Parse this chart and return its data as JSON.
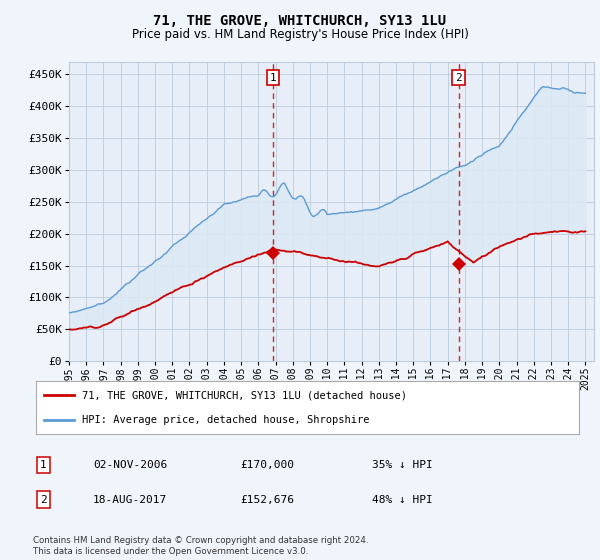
{
  "title": "71, THE GROVE, WHITCHURCH, SY13 1LU",
  "subtitle": "Price paid vs. HM Land Registry's House Price Index (HPI)",
  "ylabel_ticks": [
    "£0",
    "£50K",
    "£100K",
    "£150K",
    "£200K",
    "£250K",
    "£300K",
    "£350K",
    "£400K",
    "£450K"
  ],
  "ylabel_values": [
    0,
    50000,
    100000,
    150000,
    200000,
    250000,
    300000,
    350000,
    400000,
    450000
  ],
  "ylim": [
    0,
    470000
  ],
  "xlim_start": 1995.0,
  "xlim_end": 2025.5,
  "hpi_color": "#5b9bd5",
  "price_color": "#cc0000",
  "shade_color": "#dce9f5",
  "vline_color": "#cc0000",
  "point1_x": 2006.84,
  "point1_y": 170000,
  "point2_x": 2017.63,
  "point2_y": 152676,
  "legend_line1": "71, THE GROVE, WHITCHURCH, SY13 1LU (detached house)",
  "legend_line2": "HPI: Average price, detached house, Shropshire",
  "table_row1_num": "1",
  "table_row1_date": "02-NOV-2006",
  "table_row1_price": "£170,000",
  "table_row1_info": "35% ↓ HPI",
  "table_row2_num": "2",
  "table_row2_date": "18-AUG-2017",
  "table_row2_price": "£152,676",
  "table_row2_info": "48% ↓ HPI",
  "footnote": "Contains HM Land Registry data © Crown copyright and database right 2024.\nThis data is licensed under the Open Government Licence v3.0.",
  "background_color": "#f0f4fa",
  "plot_bg_color": "#e8f0f8",
  "grid_color": "#bbccdd"
}
